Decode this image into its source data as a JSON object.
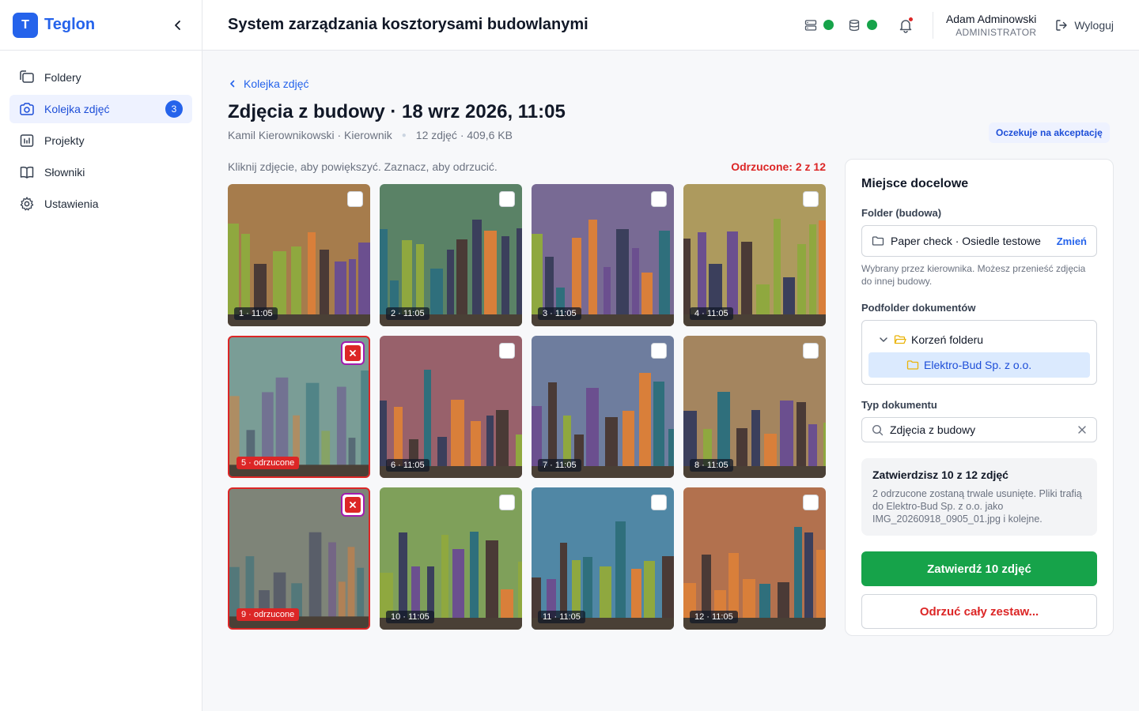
{
  "brand": {
    "logo_letter": "T",
    "name": "Teglon"
  },
  "sidebar": {
    "items": [
      {
        "label": "Foldery",
        "icon": "folders-icon"
      },
      {
        "label": "Kolejka zdjęć",
        "icon": "camera-icon",
        "badge": "3",
        "active": true
      },
      {
        "label": "Projekty",
        "icon": "chart-icon"
      },
      {
        "label": "Słowniki",
        "icon": "book-icon"
      },
      {
        "label": "Ustawienia",
        "icon": "gear-icon"
      }
    ]
  },
  "header": {
    "title": "System zarządzania kosztorysami budowlanymi",
    "user_name": "Adam Adminowski",
    "user_role": "ADMINISTRATOR",
    "logout_label": "Wyloguj",
    "colors": {
      "status_ok": "#16a34a",
      "notification": "#dc2626"
    }
  },
  "main": {
    "back_label": "Kolejka zdjęć",
    "title": "Zdjęcia z budowy · 18 wrz 2026, 11:05",
    "author": "Kamil Kierownikowski · Kierownik",
    "stats": "12 zdjęć · 409,6 KB",
    "status_pill": "Oczekuje na akceptację",
    "hint": "Kliknij zdjęcie, aby powiększyć. Zaznacz, aby odrzucić.",
    "rejected_count": "Odrzucone: 2 z 12",
    "photos": [
      {
        "caption": "1 · 11:05",
        "bg": "#a67c4c",
        "rejected": false
      },
      {
        "caption": "2 · 11:05",
        "bg": "#5a8266",
        "rejected": false
      },
      {
        "caption": "3 · 11:05",
        "bg": "#786a94",
        "rejected": false
      },
      {
        "caption": "4 · 11:05",
        "bg": "#ad9a5e",
        "rejected": false
      },
      {
        "caption": "5 · odrzucone",
        "bg": "#7a9d96",
        "rejected": true
      },
      {
        "caption": "6 · 11:05",
        "bg": "#98616b",
        "rejected": false
      },
      {
        "caption": "7 · 11:05",
        "bg": "#6e7d9e",
        "rejected": false
      },
      {
        "caption": "8 · 11:05",
        "bg": "#a4855f",
        "rejected": false
      },
      {
        "caption": "9 · odrzucone",
        "bg": "#7e8478",
        "rejected": true
      },
      {
        "caption": "10 · 11:05",
        "bg": "#7fa05a",
        "rejected": false
      },
      {
        "caption": "11 · 11:05",
        "bg": "#5087a5",
        "rejected": false
      },
      {
        "caption": "12 · 11:05",
        "bg": "#b2714e",
        "rejected": false
      }
    ]
  },
  "panel": {
    "title": "Miejsce docelowe",
    "folder_label": "Folder (budowa)",
    "folder_value": "Paper check · Osiedle testowe",
    "change_label": "Zmień",
    "folder_help": "Wybrany przez kierownika. Możesz przenieść zdjęcia do innej budowy.",
    "subfolder_label": "Podfolder dokumentów",
    "tree_root": "Korzeń folderu",
    "tree_selected": "Elektro-Bud Sp. z o.o.",
    "doc_type_label": "Typ dokumentu",
    "doc_type_value": "Zdjęcia z budowy",
    "summary_title": "Zatwierdzisz 10 z 12 zdjęć",
    "summary_text": "2 odrzucone zostaną trwale usunięte. Pliki trafią do Elektro-Bud Sp. z o.o. jako IMG_20260918_0905_01.jpg i kolejne.",
    "approve_label": "Zatwierdź 10 zdjęć",
    "reject_all_label": "Odrzuć cały zestaw...",
    "colors": {
      "approve": "#16a34a",
      "reject": "#dc2626",
      "accent": "#2563eb"
    }
  }
}
